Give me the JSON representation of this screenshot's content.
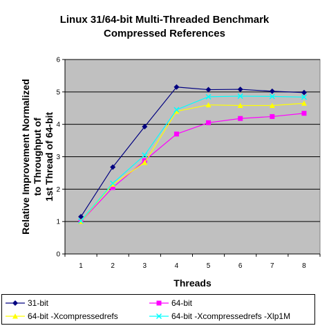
{
  "chart_data": {
    "type": "line",
    "title": "Linux 31/64-bit Multi-Threaded Benchmark",
    "subtitle": "Compressed References",
    "xlabel": "Threads",
    "ylabel_lines": [
      "Relative Improvement Normalized",
      "to Throughput of",
      "1st Thread of 64-bit"
    ],
    "categories": [
      "1",
      "2",
      "3",
      "4",
      "5",
      "6",
      "7",
      "8"
    ],
    "ylim": [
      0,
      6
    ],
    "yticks": [
      "0",
      "1",
      "2",
      "3",
      "4",
      "5",
      "6"
    ],
    "grid": true,
    "legend_position": "bottom",
    "plot_background": "#c0c0c0",
    "series": [
      {
        "name": "31-bit",
        "color": "#000080",
        "marker": "diamond",
        "values": [
          1.15,
          2.68,
          3.93,
          5.15,
          5.07,
          5.08,
          5.02,
          4.98
        ]
      },
      {
        "name": "64-bit",
        "color": "#ff00ff",
        "marker": "square",
        "values": [
          1.0,
          2.05,
          2.88,
          3.7,
          4.05,
          4.18,
          4.24,
          4.34
        ]
      },
      {
        "name": "64-bit -Xcompressedrefs",
        "color": "#ffff00",
        "marker": "triangle",
        "values": [
          1.0,
          2.15,
          2.82,
          4.4,
          4.6,
          4.58,
          4.58,
          4.65
        ]
      },
      {
        "name": "64-bit -Xcompressedrefs -Xlp1M",
        "color": "#00ffff",
        "marker": "x",
        "values": [
          1.02,
          2.18,
          3.05,
          4.45,
          4.85,
          4.87,
          4.86,
          4.84
        ]
      }
    ]
  }
}
